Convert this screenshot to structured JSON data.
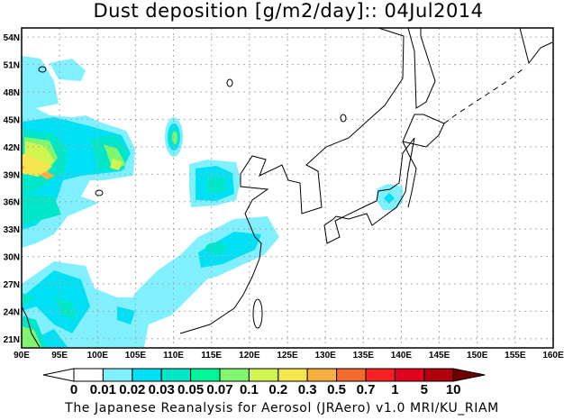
{
  "title": "Dust deposition [g/m2/day]:: 04Jul2014",
  "credit": "The Japanese Reanalysis for Aerosol (JRAero) v1.0 MRI/KU_RIAM",
  "map": {
    "lon_range": [
      90,
      160
    ],
    "lat_range": [
      20,
      55
    ],
    "lon_ticks": [
      "90E",
      "95E",
      "100E",
      "105E",
      "110E",
      "115E",
      "120E",
      "125E",
      "130E",
      "135E",
      "140E",
      "145E",
      "150E",
      "155E",
      "160E"
    ],
    "lat_ticks": [
      "21N",
      "24N",
      "27N",
      "30N",
      "33N",
      "36N",
      "39N",
      "42N",
      "45N",
      "48N",
      "51N",
      "54N"
    ],
    "grid": "dotted"
  },
  "colorbar": {
    "labels": [
      "0",
      "0.01",
      "0.02",
      "0.03",
      "0.05",
      "0.07",
      "0.1",
      "0.2",
      "0.3",
      "0.5",
      "0.7",
      "1",
      "5",
      "10"
    ],
    "colors": [
      "#ffffff",
      "#80f0ff",
      "#00e0f5",
      "#00e6c8",
      "#00f59a",
      "#80f570",
      "#d0f550",
      "#f5e650",
      "#f5b040",
      "#f56a30",
      "#f52020",
      "#e00020",
      "#b00010"
    ],
    "under_color": "#ffffff",
    "over_color": "#700000"
  }
}
